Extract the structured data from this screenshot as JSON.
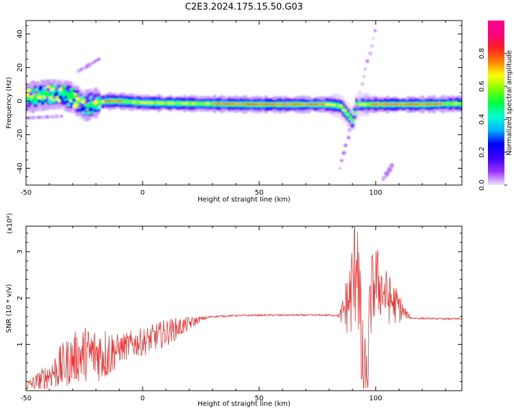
{
  "figure_title": "C2E3.2024.175.15.50.G03",
  "colors": {
    "snr_line": "#ee3333",
    "colorbar_stops": [
      "#f0e6ff",
      "#9b30ff",
      "#3a00ff",
      "#0000ff",
      "#00b4ff",
      "#00ffd0",
      "#00ff40",
      "#80ff00",
      "#ffff00",
      "#ff8000",
      "#ff2020",
      "#ff0080",
      "#ff0090"
    ]
  },
  "chart_data": [
    {
      "type": "heatmap",
      "xlabel": "Height of straight line (km)",
      "ylabel": "Frequency (Hz)",
      "xlim": [
        -50,
        137
      ],
      "ylim": [
        -50,
        48
      ],
      "x_ticks": [
        -50,
        0,
        50,
        100
      ],
      "y_ticks": [
        -40,
        -20,
        0,
        20,
        40
      ],
      "grid": false,
      "colorbar": {
        "label": "Normalized spectral amplitude",
        "range": [
          0,
          1
        ],
        "ticks": [
          0.0,
          0.2,
          0.4,
          0.6,
          0.8
        ]
      },
      "ridge": {
        "x": [
          -50,
          -45,
          -40,
          -35,
          -30,
          -25,
          -20,
          -15,
          -10,
          0,
          20,
          50,
          80,
          85,
          88,
          90,
          92,
          95,
          100,
          120,
          137
        ],
        "y": [
          2,
          3,
          4,
          4,
          2,
          -3,
          -1,
          0,
          0,
          -1,
          -1.5,
          -2,
          -2,
          -3,
          -8,
          -12,
          -2,
          -2,
          -2,
          -2,
          -1.5
        ]
      },
      "secondary_traces": [
        {
          "x": [
            -49,
            -35
          ],
          "y": [
            -10,
            -9
          ]
        },
        {
          "x": [
            -27,
            -19
          ],
          "y": [
            18,
            25
          ]
        },
        {
          "x": [
            85,
            100
          ],
          "y": [
            -40,
            42
          ]
        },
        {
          "x": [
            103,
            107
          ],
          "y": [
            -47,
            -38
          ]
        }
      ]
    },
    {
      "type": "line",
      "xlabel": "Height of straight line (km)",
      "ylabel": "SNR (10 * v/v)",
      "y_multiplier": "(x10⁴)",
      "xlim": [
        -50,
        137
      ],
      "ylim": [
        0,
        3.55
      ],
      "x_ticks": [
        -50,
        0,
        50,
        100
      ],
      "y_ticks": [
        1,
        2,
        3
      ],
      "grid": false,
      "envelope": {
        "x": [
          -50,
          -45,
          -40,
          -35,
          -30,
          -25,
          -20,
          -15,
          -10,
          -5,
          0,
          5,
          10,
          15,
          20,
          25,
          30,
          40,
          50,
          60,
          70,
          80,
          85,
          87,
          89,
          91,
          92,
          93,
          94,
          95,
          96,
          98,
          100,
          105,
          110,
          112,
          115,
          120,
          130,
          137
        ],
        "y": [
          0.1,
          0.2,
          0.35,
          0.5,
          0.7,
          0.8,
          0.8,
          0.8,
          0.9,
          1.0,
          1.05,
          1.15,
          1.25,
          1.35,
          1.45,
          1.55,
          1.6,
          1.62,
          1.63,
          1.63,
          1.63,
          1.63,
          1.62,
          1.8,
          2.0,
          2.5,
          3.4,
          1.8,
          0.6,
          0.1,
          0.1,
          2.0,
          2.4,
          2.0,
          1.8,
          1.7,
          1.57,
          1.56,
          1.55,
          1.55
        ]
      },
      "noise_amplitude": {
        "x": [
          -50,
          -40,
          -35,
          -25,
          -15,
          -10,
          0,
          10,
          20,
          25,
          30,
          84,
          86,
          92,
          96,
          100,
          110,
          113,
          115,
          137
        ],
        "y": [
          0.1,
          0.3,
          0.5,
          0.6,
          0.6,
          0.3,
          0.3,
          0.3,
          0.15,
          0.05,
          0.02,
          0.02,
          0.35,
          1.5,
          1.0,
          0.8,
          0.35,
          0.1,
          0.02,
          0.02
        ]
      }
    }
  ]
}
